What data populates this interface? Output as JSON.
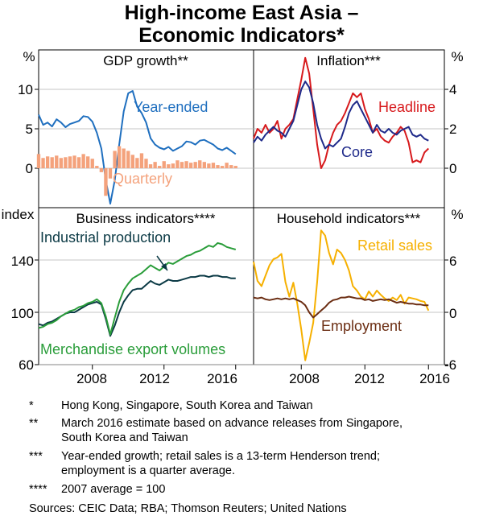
{
  "title_line1": "High-income East Asia –",
  "title_line2": "Economic Indicators*",
  "chart_data": [
    {
      "type": "line",
      "panel": "top-left",
      "title": "GDP growth**",
      "ylabel": "%",
      "ylim": [
        -5,
        15
      ],
      "yticks": [
        "10",
        "5",
        "0"
      ],
      "series": [
        {
          "name": "Year-ended",
          "color": "#1f6fbf",
          "x": [
            2005.0,
            2005.25,
            2005.5,
            2005.75,
            2006.0,
            2006.25,
            2006.5,
            2006.75,
            2007.0,
            2007.25,
            2007.5,
            2007.75,
            2008.0,
            2008.25,
            2008.5,
            2008.75,
            2009.0,
            2009.25,
            2009.5,
            2009.75,
            2010.0,
            2010.25,
            2010.5,
            2010.75,
            2011.0,
            2011.25,
            2011.5,
            2011.75,
            2012.0,
            2012.25,
            2012.5,
            2012.75,
            2013.0,
            2013.25,
            2013.5,
            2013.75,
            2014.0,
            2014.25,
            2014.5,
            2014.75,
            2015.0,
            2015.25,
            2015.5,
            2015.75,
            2016.0
          ],
          "y": [
            6.8,
            5.5,
            5.8,
            5.3,
            6.2,
            5.8,
            5.2,
            5.6,
            5.8,
            6.0,
            6.6,
            6.5,
            5.9,
            4.5,
            2.5,
            -1.5,
            -4.5,
            -1.5,
            3.0,
            7.2,
            9.5,
            9.8,
            7.8,
            7.0,
            5.8,
            3.8,
            3.0,
            2.6,
            2.4,
            2.7,
            2.2,
            2.5,
            2.8,
            3.4,
            3.3,
            3.0,
            3.5,
            3.6,
            3.3,
            3.0,
            2.5,
            2.3,
            2.6,
            2.2,
            1.8
          ]
        },
        {
          "name": "Quarterly",
          "color": "#f4a27c",
          "type": "bar",
          "x": [
            2005.0,
            2005.25,
            2005.5,
            2005.75,
            2006.0,
            2006.25,
            2006.5,
            2006.75,
            2007.0,
            2007.25,
            2007.5,
            2007.75,
            2008.0,
            2008.25,
            2008.5,
            2008.75,
            2009.0,
            2009.25,
            2009.5,
            2009.75,
            2010.0,
            2010.25,
            2010.5,
            2010.75,
            2011.0,
            2011.25,
            2011.5,
            2011.75,
            2012.0,
            2012.25,
            2012.5,
            2012.75,
            2013.0,
            2013.25,
            2013.5,
            2013.75,
            2014.0,
            2014.25,
            2014.5,
            2014.75,
            2015.0,
            2015.25,
            2015.5,
            2015.75,
            2016.0
          ],
          "y": [
            1.8,
            1.3,
            1.5,
            1.4,
            1.6,
            1.3,
            1.4,
            1.5,
            1.6,
            1.4,
            1.8,
            1.5,
            1.2,
            0.3,
            -0.5,
            -3.5,
            -1.3,
            2.2,
            2.8,
            2.5,
            2.2,
            1.7,
            1.3,
            1.9,
            1.2,
            0.5,
            0.8,
            0.3,
            0.9,
            0.5,
            0.6,
            1.0,
            0.8,
            0.9,
            0.7,
            0.8,
            1.0,
            0.8,
            0.6,
            0.7,
            0.4,
            0.3,
            0.7,
            0.4,
            0.3
          ]
        }
      ],
      "labels": [
        "Year-ended",
        "Quarterly"
      ]
    },
    {
      "type": "line",
      "panel": "top-right",
      "title": "Inflation***",
      "ylabel": "%",
      "ylim": [
        -2,
        6
      ],
      "yticks": [
        "4",
        "2",
        "0"
      ],
      "series": [
        {
          "name": "Headline",
          "color": "#d7191c",
          "x": [
            2005.0,
            2005.25,
            2005.5,
            2005.75,
            2006.0,
            2006.25,
            2006.5,
            2006.75,
            2007.0,
            2007.25,
            2007.5,
            2007.75,
            2008.0,
            2008.25,
            2008.5,
            2008.75,
            2009.0,
            2009.25,
            2009.5,
            2009.75,
            2010.0,
            2010.25,
            2010.5,
            2010.75,
            2011.0,
            2011.25,
            2011.5,
            2011.75,
            2012.0,
            2012.25,
            2012.5,
            2012.75,
            2013.0,
            2013.25,
            2013.5,
            2013.75,
            2014.0,
            2014.25,
            2014.5,
            2014.75,
            2015.0,
            2015.25,
            2015.5,
            2015.75,
            2016.0
          ],
          "y": [
            1.5,
            2.0,
            1.8,
            2.2,
            1.8,
            2.0,
            2.4,
            1.5,
            2.0,
            2.2,
            2.5,
            3.5,
            4.5,
            5.6,
            4.8,
            3.0,
            1.2,
            0.0,
            0.4,
            1.2,
            1.8,
            2.2,
            2.4,
            2.8,
            3.3,
            3.8,
            3.6,
            3.8,
            3.0,
            2.5,
            1.8,
            2.0,
            1.6,
            1.4,
            1.3,
            1.6,
            1.8,
            2.1,
            1.9,
            1.3,
            0.3,
            0.4,
            0.3,
            0.8,
            1.0
          ]
        },
        {
          "name": "Core",
          "color": "#1f2a8a",
          "x": [
            2005.0,
            2005.25,
            2005.5,
            2005.75,
            2006.0,
            2006.25,
            2006.5,
            2006.75,
            2007.0,
            2007.25,
            2007.5,
            2007.75,
            2008.0,
            2008.25,
            2008.5,
            2008.75,
            2009.0,
            2009.25,
            2009.5,
            2009.75,
            2010.0,
            2010.25,
            2010.5,
            2010.75,
            2011.0,
            2011.25,
            2011.5,
            2011.75,
            2012.0,
            2012.25,
            2012.5,
            2012.75,
            2013.0,
            2013.25,
            2013.5,
            2013.75,
            2014.0,
            2014.25,
            2014.5,
            2014.75,
            2015.0,
            2015.25,
            2015.5,
            2015.75,
            2016.0
          ],
          "y": [
            1.3,
            1.6,
            1.4,
            1.7,
            1.9,
            2.1,
            1.9,
            1.8,
            1.6,
            2.0,
            2.4,
            3.2,
            4.0,
            4.4,
            4.1,
            3.3,
            2.2,
            1.5,
            1.0,
            1.2,
            1.1,
            1.3,
            1.5,
            2.1,
            2.8,
            3.2,
            3.4,
            3.0,
            2.6,
            2.2,
            1.8,
            2.2,
            1.9,
            1.8,
            2.0,
            1.8,
            1.7,
            1.9,
            2.0,
            2.1,
            1.7,
            1.6,
            1.7,
            1.5,
            1.4
          ]
        }
      ],
      "labels": [
        "Headline",
        "Core"
      ]
    },
    {
      "type": "line",
      "panel": "bottom-left",
      "title": "Business indicators****",
      "ylabel": "index",
      "ylim": [
        60,
        180
      ],
      "yticks": [
        "140",
        "100",
        "60"
      ],
      "series": [
        {
          "name": "Industrial production",
          "color": "#0b3a45",
          "x": [
            2005.0,
            2005.25,
            2005.5,
            2005.75,
            2006.0,
            2006.25,
            2006.5,
            2006.75,
            2007.0,
            2007.25,
            2007.5,
            2007.75,
            2008.0,
            2008.25,
            2008.5,
            2008.75,
            2009.0,
            2009.25,
            2009.5,
            2009.75,
            2010.0,
            2010.25,
            2010.5,
            2010.75,
            2011.0,
            2011.25,
            2011.5,
            2011.75,
            2012.0,
            2012.25,
            2012.5,
            2012.75,
            2013.0,
            2013.25,
            2013.5,
            2013.75,
            2014.0,
            2014.25,
            2014.5,
            2014.75,
            2015.0,
            2015.25,
            2015.5,
            2015.75,
            2016.0
          ],
          "y": [
            91,
            90,
            92,
            93,
            95,
            97,
            99,
            100,
            100,
            102,
            104,
            106,
            107,
            108,
            106,
            95,
            82,
            90,
            100,
            108,
            113,
            117,
            118,
            118,
            121,
            124,
            122,
            121,
            123,
            125,
            124,
            124,
            125,
            126,
            127,
            127,
            128,
            128,
            127,
            128,
            128,
            127,
            127,
            126,
            126
          ]
        },
        {
          "name": "Merchandise export volumes",
          "color": "#2a9d3a",
          "x": [
            2005.0,
            2005.25,
            2005.5,
            2005.75,
            2006.0,
            2006.25,
            2006.5,
            2006.75,
            2007.0,
            2007.25,
            2007.5,
            2007.75,
            2008.0,
            2008.25,
            2008.5,
            2008.75,
            2009.0,
            2009.25,
            2009.5,
            2009.75,
            2010.0,
            2010.25,
            2010.5,
            2010.75,
            2011.0,
            2011.25,
            2011.5,
            2011.75,
            2012.0,
            2012.25,
            2012.5,
            2012.75,
            2013.0,
            2013.25,
            2013.5,
            2013.75,
            2014.0,
            2014.25,
            2014.5,
            2014.75,
            2015.0,
            2015.25,
            2015.5,
            2015.75,
            2016.0
          ],
          "y": [
            88,
            89,
            91,
            92,
            94,
            97,
            99,
            101,
            102,
            104,
            105,
            107,
            108,
            110,
            107,
            97,
            83,
            96,
            108,
            117,
            122,
            126,
            128,
            130,
            133,
            136,
            134,
            132,
            135,
            138,
            137,
            139,
            141,
            143,
            144,
            146,
            147,
            149,
            151,
            150,
            153,
            152,
            150,
            149,
            148
          ]
        }
      ],
      "labels": [
        "Industrial production",
        "Merchandise export volumes"
      ]
    },
    {
      "type": "line",
      "panel": "bottom-right",
      "title": "Household indicators***",
      "ylabel": "%",
      "ylim": [
        -6,
        12
      ],
      "yticks": [
        "6",
        "0",
        "-6"
      ],
      "series": [
        {
          "name": "Retail sales",
          "color": "#f6b000",
          "x": [
            2005.0,
            2005.25,
            2005.5,
            2005.75,
            2006.0,
            2006.25,
            2006.5,
            2006.75,
            2007.0,
            2007.25,
            2007.5,
            2007.75,
            2008.0,
            2008.25,
            2008.5,
            2008.75,
            2009.0,
            2009.25,
            2009.5,
            2009.75,
            2010.0,
            2010.25,
            2010.5,
            2010.75,
            2011.0,
            2011.25,
            2011.5,
            2011.75,
            2012.0,
            2012.25,
            2012.5,
            2012.75,
            2013.0,
            2013.25,
            2013.5,
            2013.75,
            2014.0,
            2014.25,
            2014.5,
            2014.75,
            2015.0,
            2015.25,
            2015.5,
            2015.75,
            2016.0
          ],
          "y": [
            5.8,
            3.6,
            3.0,
            4.2,
            5.4,
            6.1,
            6.3,
            6.7,
            3.5,
            1.8,
            3.4,
            1.0,
            -2.0,
            -5.5,
            -3.5,
            -1.2,
            3.5,
            9.4,
            8.8,
            6.8,
            5.5,
            7.2,
            6.8,
            6.0,
            4.8,
            3.0,
            2.5,
            1.8,
            1.5,
            2.4,
            1.8,
            2.5,
            2.0,
            1.6,
            1.3,
            1.7,
            1.4,
            2.0,
            1.0,
            1.7,
            1.6,
            1.5,
            1.3,
            1.2,
            0.2
          ]
        },
        {
          "name": "Employment",
          "color": "#6b2d12",
          "x": [
            2005.0,
            2005.25,
            2005.5,
            2005.75,
            2006.0,
            2006.25,
            2006.5,
            2006.75,
            2007.0,
            2007.25,
            2007.5,
            2007.75,
            2008.0,
            2008.25,
            2008.5,
            2008.75,
            2009.0,
            2009.25,
            2009.5,
            2009.75,
            2010.0,
            2010.25,
            2010.5,
            2010.75,
            2011.0,
            2011.25,
            2011.5,
            2011.75,
            2012.0,
            2012.25,
            2012.5,
            2012.75,
            2013.0,
            2013.25,
            2013.5,
            2013.75,
            2014.0,
            2014.25,
            2014.5,
            2014.75,
            2015.0,
            2015.25,
            2015.5,
            2015.75,
            2016.0
          ],
          "y": [
            1.7,
            1.6,
            1.7,
            1.5,
            1.4,
            1.5,
            1.6,
            1.5,
            1.6,
            1.5,
            1.6,
            1.4,
            1.2,
            0.8,
            0.0,
            -0.6,
            -0.2,
            0.2,
            0.6,
            1.1,
            1.4,
            1.5,
            1.7,
            1.7,
            1.8,
            1.7,
            1.6,
            1.6,
            1.4,
            1.5,
            1.3,
            1.4,
            1.5,
            1.4,
            1.5,
            1.3,
            1.1,
            1.2,
            1.1,
            1.0,
            1.0,
            0.9,
            0.9,
            0.8,
            0.8
          ]
        }
      ],
      "labels": [
        "Retail sales",
        "Employment"
      ]
    }
  ],
  "x_axis": {
    "xlim": [
      2005,
      2017
    ],
    "ticks": [
      "2008",
      "2012",
      "2016"
    ]
  },
  "footnotes": [
    {
      "mark": "*",
      "text": "Hong Kong, Singapore, South Korea and Taiwan"
    },
    {
      "mark": "**",
      "text": "March 2016 estimate based on advance releases from Singapore,"
    },
    {
      "mark": "",
      "text": "South Korea and Taiwan"
    },
    {
      "mark": "***",
      "text": "Year-ended growth; retail sales is a 13-term Henderson trend;"
    },
    {
      "mark": "",
      "text": "employment is a quarter average."
    },
    {
      "mark": "****",
      "text": "2007 average = 100"
    }
  ],
  "sources": "Sources:  CEIC Data; RBA; Thomson Reuters; United Nations"
}
